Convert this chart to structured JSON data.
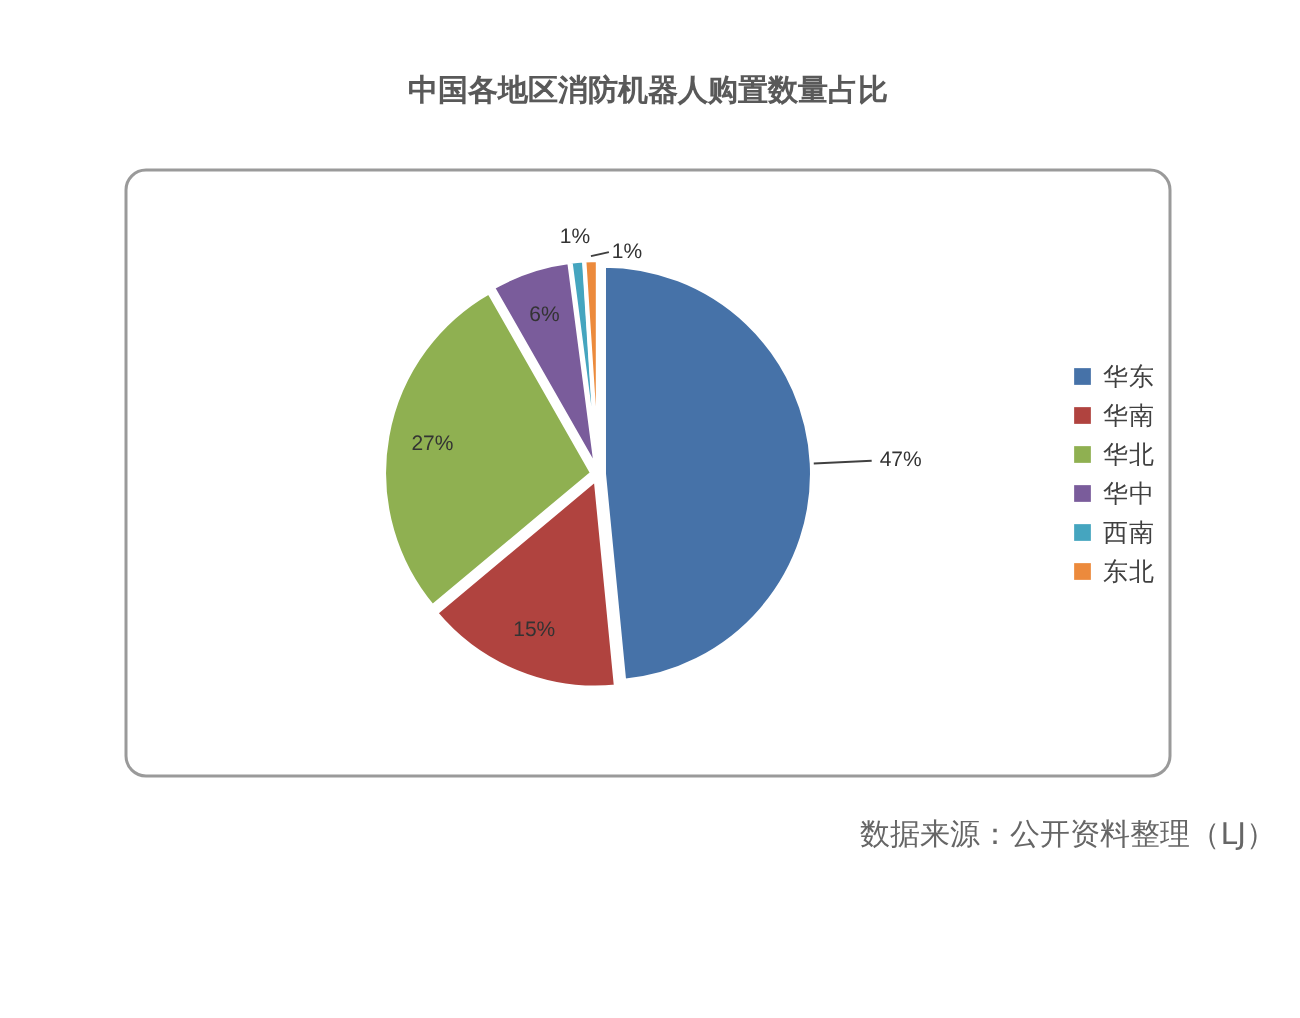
{
  "chart_data": {
    "type": "pie",
    "title": "中国各地区消防机器人购置数量占比",
    "categories": [
      "华东",
      "华南",
      "华北",
      "华中",
      "西南",
      "东北"
    ],
    "values": [
      47,
      15,
      27,
      6,
      1,
      1
    ],
    "colors": [
      "#4672a8",
      "#b0433f",
      "#8fb051",
      "#7a5c9b",
      "#45a5bf",
      "#ec8a3c"
    ],
    "value_labels": [
      "47%",
      "15%",
      "27%",
      "6%",
      "1%",
      "1%"
    ],
    "legend": "right",
    "annotations": [
      "数据来源：公开资料整理（LJ）"
    ]
  }
}
